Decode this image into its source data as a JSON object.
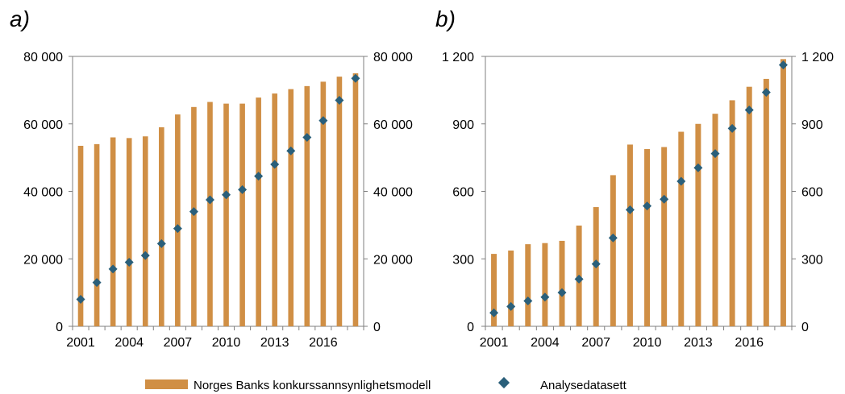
{
  "legend": {
    "bars_label": "Norges Banks konkurssannsynlighetsmodell",
    "points_label": "Analysedatasett",
    "bar_color": "#D08F45",
    "point_color": "#2A5F7A"
  },
  "chart_data": [
    {
      "type": "bar",
      "panel_label": "a)",
      "x": [
        2001,
        2002,
        2003,
        2004,
        2005,
        2006,
        2007,
        2008,
        2009,
        2010,
        2011,
        2012,
        2013,
        2014,
        2015,
        2016,
        2017,
        2018
      ],
      "x_tick_labels": [
        "2001",
        "2004",
        "2007",
        "2010",
        "2013",
        "2016"
      ],
      "x_tick_values": [
        2001,
        2004,
        2007,
        2010,
        2013,
        2016
      ],
      "ylim": [
        0,
        80000
      ],
      "y_ticks": [
        0,
        20000,
        40000,
        60000,
        80000
      ],
      "y_tick_labels": [
        "0",
        "20 000",
        "40 000",
        "60 000",
        "80 000"
      ],
      "grid": false,
      "series": [
        {
          "name": "Norges Banks konkurssannsynlighetsmodell",
          "kind": "bar",
          "values": [
            53500,
            54000,
            56000,
            55800,
            56300,
            59000,
            62800,
            65000,
            66500,
            66000,
            66000,
            67800,
            69000,
            70300,
            71200,
            72500,
            74000,
            75000
          ]
        },
        {
          "name": "Analysedatasett",
          "kind": "scatter",
          "values": [
            8000,
            13000,
            17000,
            19000,
            21000,
            24500,
            29000,
            34000,
            37500,
            39000,
            40500,
            44500,
            48000,
            52000,
            56000,
            61000,
            67000,
            73500
          ]
        }
      ]
    },
    {
      "type": "bar",
      "panel_label": "b)",
      "x": [
        2001,
        2002,
        2003,
        2004,
        2005,
        2006,
        2007,
        2008,
        2009,
        2010,
        2011,
        2012,
        2013,
        2014,
        2015,
        2016,
        2017,
        2018
      ],
      "x_tick_labels": [
        "2001",
        "2004",
        "2007",
        "2010",
        "2013",
        "2016"
      ],
      "x_tick_values": [
        2001,
        2004,
        2007,
        2010,
        2013,
        2016
      ],
      "ylim": [
        0,
        1200
      ],
      "y_ticks": [
        0,
        300,
        600,
        900,
        1200
      ],
      "y_tick_labels": [
        "0",
        "300",
        "600",
        "900",
        "1 200"
      ],
      "grid": false,
      "series": [
        {
          "name": "Norges Banks konkurssannsynlighetsmodell",
          "kind": "bar",
          "values": [
            322,
            337,
            365,
            370,
            380,
            448,
            530,
            672,
            808,
            788,
            797,
            865,
            900,
            945,
            1005,
            1065,
            1100,
            1188
          ]
        },
        {
          "name": "Analysedatasett",
          "kind": "scatter",
          "values": [
            60,
            88,
            113,
            130,
            150,
            210,
            277,
            393,
            518,
            535,
            565,
            645,
            705,
            768,
            880,
            962,
            1040,
            1162
          ]
        }
      ]
    }
  ]
}
